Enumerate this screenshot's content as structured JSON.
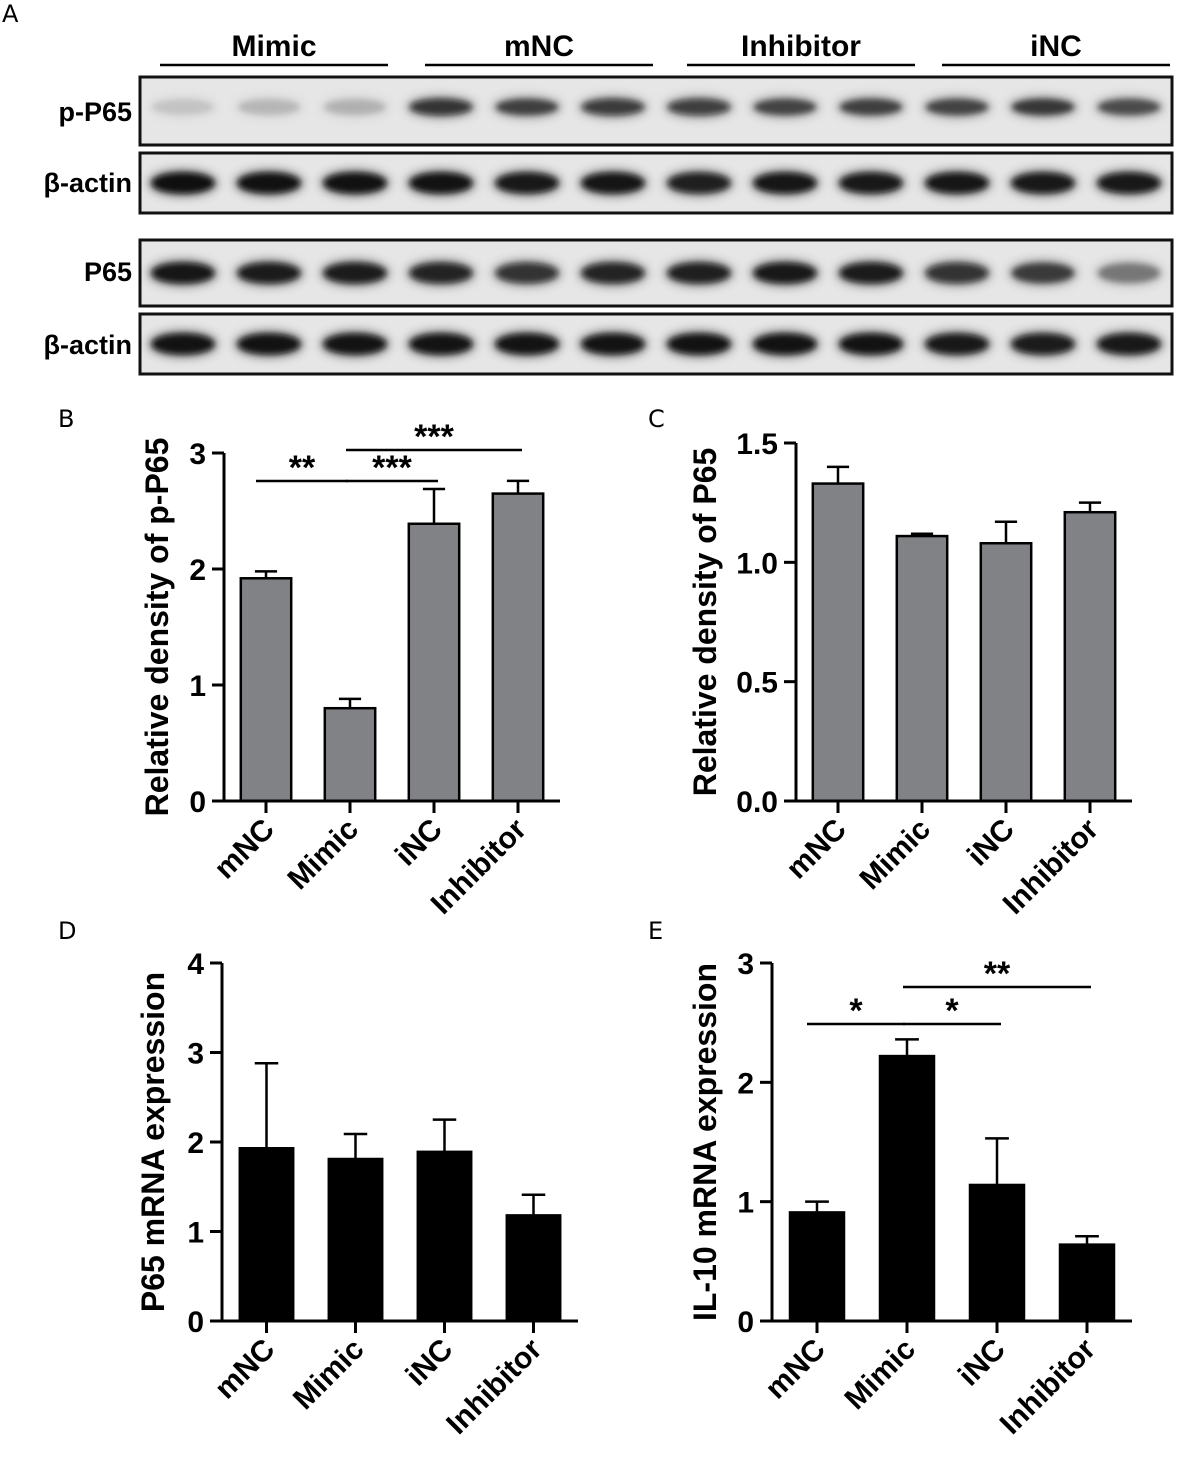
{
  "blot": {
    "panel_label": "A",
    "groups": [
      "Mimic",
      "mNC",
      "Inhibitor",
      "iNC"
    ],
    "rows": [
      "p-P65",
      "β-actin",
      "P65",
      "β-actin"
    ]
  },
  "chart_data": [
    {
      "panel_label": "B",
      "type": "bar",
      "categories": [
        "mNC",
        "Mimic",
        "iNC",
        "Inhibitor"
      ],
      "values": [
        1.92,
        0.8,
        2.39,
        2.65
      ],
      "errors": [
        0.06,
        0.08,
        0.3,
        0.11
      ],
      "ylabel": "Relative density of p-P65",
      "ylim": [
        0,
        3
      ],
      "yticks": [
        "0",
        "1",
        "2",
        "3"
      ],
      "bar_color": "#808285",
      "significance": [
        {
          "from": 0,
          "to": 1,
          "label": "**"
        },
        {
          "from": 1,
          "to": 2,
          "label": "***"
        },
        {
          "from": 1,
          "to": 3,
          "label": "***"
        }
      ]
    },
    {
      "panel_label": "C",
      "type": "bar",
      "categories": [
        "mNC",
        "Mimic",
        "iNC",
        "Inhibitor"
      ],
      "values": [
        1.33,
        1.11,
        1.08,
        1.21
      ],
      "errors": [
        0.07,
        0.01,
        0.09,
        0.04
      ],
      "ylabel": "Relative density of P65",
      "ylim": [
        0,
        1.5
      ],
      "yticks": [
        "0.0",
        "0.5",
        "1.0",
        "1.5"
      ],
      "bar_color": "#808285",
      "significance": []
    },
    {
      "panel_label": "D",
      "type": "bar",
      "categories": [
        "mNC",
        "Mimic",
        "iNC",
        "Inhibitor"
      ],
      "values": [
        1.93,
        1.81,
        1.89,
        1.18
      ],
      "errors": [
        0.95,
        0.28,
        0.36,
        0.23
      ],
      "ylabel": "P65 mRNA expression",
      "ylim": [
        0,
        4
      ],
      "yticks": [
        "0",
        "1",
        "2",
        "3",
        "4"
      ],
      "bar_color": "#000000",
      "significance": []
    },
    {
      "panel_label": "E",
      "type": "bar",
      "categories": [
        "mNC",
        "Mimic",
        "iNC",
        "Inhibitor"
      ],
      "values": [
        0.91,
        2.22,
        1.14,
        0.64
      ],
      "errors": [
        0.09,
        0.14,
        0.39,
        0.07
      ],
      "ylabel": "IL-10 mRNA expression",
      "ylim": [
        0,
        3
      ],
      "yticks": [
        "0",
        "1",
        "2",
        "3"
      ],
      "bar_color": "#000000",
      "significance": [
        {
          "from": 0,
          "to": 1,
          "label": "*"
        },
        {
          "from": 1,
          "to": 2,
          "label": "*"
        },
        {
          "from": 1,
          "to": 3,
          "label": "**"
        }
      ]
    }
  ]
}
